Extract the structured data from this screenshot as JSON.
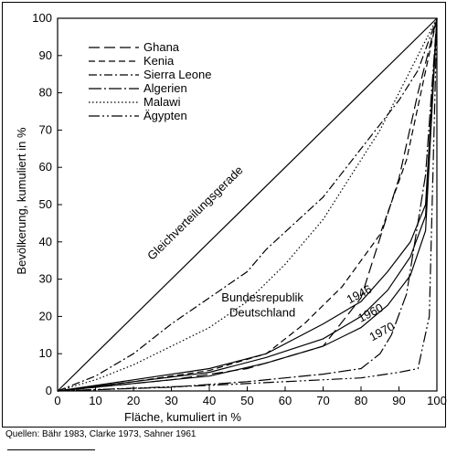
{
  "chart_data": {
    "type": "line",
    "xlabel": "Fläche, kumuliert in %",
    "ylabel": "Bevölkerung, kumuliert in %",
    "xlim": [
      0,
      100
    ],
    "ylim": [
      0,
      100
    ],
    "xticks": [
      "0",
      "10",
      "20",
      "30",
      "40",
      "50",
      "60",
      "70",
      "80",
      "90",
      "100"
    ],
    "yticks": [
      "0",
      "10",
      "20",
      "30",
      "40",
      "50",
      "60",
      "70",
      "80",
      "90",
      "100"
    ],
    "grid": false,
    "legend_position": "top-left",
    "equality_line": {
      "label": "Gleichverteilungsgerade",
      "points": [
        [
          0,
          0
        ],
        [
          100,
          100
        ]
      ]
    },
    "series": [
      {
        "name": "Ghana",
        "dash": "long-dash",
        "points": [
          [
            0,
            0
          ],
          [
            10,
            1
          ],
          [
            30,
            3
          ],
          [
            50,
            6
          ],
          [
            70,
            12
          ],
          [
            80,
            25
          ],
          [
            90,
            57
          ],
          [
            95,
            80
          ],
          [
            100,
            100
          ]
        ]
      },
      {
        "name": "Kenia",
        "dash": "dash",
        "points": [
          [
            0,
            0
          ],
          [
            20,
            2.5
          ],
          [
            40,
            5.5
          ],
          [
            55,
            10
          ],
          [
            65,
            18
          ],
          [
            75,
            28
          ],
          [
            85,
            42
          ],
          [
            92,
            62
          ],
          [
            100,
            100
          ]
        ]
      },
      {
        "name": "Sierra Leone",
        "dash": "dash-dot",
        "points": [
          [
            0,
            0
          ],
          [
            10,
            4
          ],
          [
            20,
            10
          ],
          [
            30,
            18
          ],
          [
            40,
            25
          ],
          [
            50,
            32
          ],
          [
            55,
            38
          ],
          [
            70,
            52
          ],
          [
            80,
            65
          ],
          [
            90,
            78
          ],
          [
            95,
            86
          ],
          [
            100,
            100
          ]
        ]
      },
      {
        "name": "Algerien",
        "dash": "long-dash-dot",
        "points": [
          [
            0,
            0
          ],
          [
            30,
            1
          ],
          [
            50,
            2.5
          ],
          [
            70,
            4.5
          ],
          [
            80,
            6
          ],
          [
            85,
            10
          ],
          [
            88,
            15
          ],
          [
            92,
            26
          ],
          [
            97,
            58
          ],
          [
            100,
            100
          ]
        ]
      },
      {
        "name": "Malawi",
        "dash": "dotted",
        "points": [
          [
            0,
            0
          ],
          [
            10,
            3
          ],
          [
            20,
            7
          ],
          [
            30,
            12
          ],
          [
            40,
            17
          ],
          [
            50,
            24
          ],
          [
            60,
            34
          ],
          [
            70,
            46
          ],
          [
            80,
            62
          ],
          [
            85,
            70
          ],
          [
            90,
            80
          ],
          [
            100,
            100
          ]
        ]
      },
      {
        "name": "Ägypten",
        "dash": "long-dash-double-dot",
        "points": [
          [
            0,
            0
          ],
          [
            40,
            1.5
          ],
          [
            60,
            2.5
          ],
          [
            80,
            3.5
          ],
          [
            90,
            5
          ],
          [
            95,
            6
          ],
          [
            98,
            20
          ],
          [
            100,
            100
          ]
        ]
      },
      {
        "name": "1946",
        "dash": "solid",
        "points": [
          [
            0,
            0
          ],
          [
            20,
            3
          ],
          [
            40,
            6
          ],
          [
            55,
            10
          ],
          [
            70,
            18
          ],
          [
            80,
            24
          ],
          [
            87,
            32
          ],
          [
            93,
            40
          ],
          [
            97,
            50
          ],
          [
            100,
            100
          ]
        ]
      },
      {
        "name": "1960",
        "dash": "solid",
        "points": [
          [
            0,
            0
          ],
          [
            20,
            2.5
          ],
          [
            40,
            5
          ],
          [
            55,
            9
          ],
          [
            70,
            14
          ],
          [
            80,
            20
          ],
          [
            87,
            27
          ],
          [
            93,
            36
          ],
          [
            97,
            47
          ],
          [
            100,
            100
          ]
        ]
      },
      {
        "name": "1970",
        "dash": "solid",
        "points": [
          [
            0,
            0
          ],
          [
            20,
            2
          ],
          [
            40,
            4
          ],
          [
            55,
            7.5
          ],
          [
            70,
            12
          ],
          [
            80,
            17
          ],
          [
            87,
            23
          ],
          [
            93,
            31
          ],
          [
            97,
            43
          ],
          [
            100,
            100
          ]
        ]
      }
    ],
    "annotations": [
      {
        "text": "Bundesrepublik",
        "x": 54,
        "y": 24
      },
      {
        "text": "Deutschland",
        "x": 54,
        "y": 20
      }
    ]
  },
  "source": "Quellen: Bähr 1983, Clarke 1973, Sahner 1961"
}
